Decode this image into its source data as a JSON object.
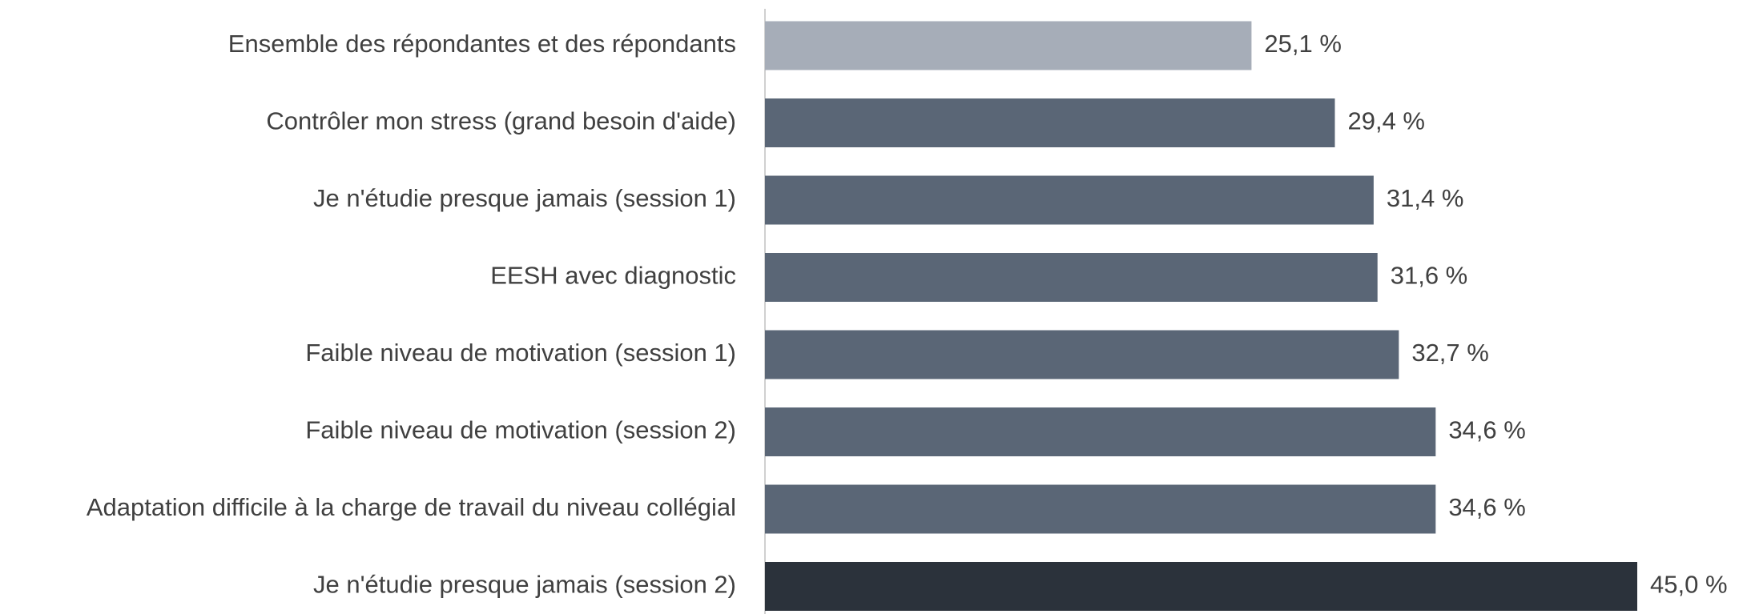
{
  "chart_data": {
    "type": "barh",
    "categories": [
      "Ensemble des répondantes et des répondants",
      "Contrôler mon stress (grand besoin d'aide)",
      "Je n'étudie presque jamais (session 1)",
      "EESH avec diagnostic",
      "Faible niveau de motivation (session 1)",
      "Faible niveau de motivation (session 2)",
      "Adaptation difficile à la charge de travail du niveau collégial",
      "Je n'étudie presque jamais (session 2)"
    ],
    "values": [
      25.1,
      29.4,
      31.4,
      31.6,
      32.7,
      34.6,
      34.6,
      45.0
    ],
    "value_labels": [
      "25,1 %",
      "29,4 %",
      "31,4 %",
      "31,6 %",
      "32,7 %",
      "34,6 %",
      "34,6 %",
      "45,0 %"
    ],
    "colors": [
      "#a6adb8",
      "#5a6676",
      "#5a6676",
      "#5a6676",
      "#5a6676",
      "#5a6676",
      "#5a6676",
      "#2b323b"
    ]
  }
}
